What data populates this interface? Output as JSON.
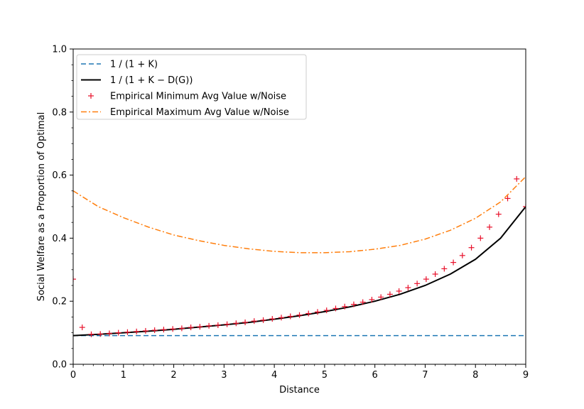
{
  "chart_data": {
    "type": "line",
    "xlabel": "Distance",
    "ylabel": "Social Welfare as a Proportion of Optimal",
    "xlim": [
      0,
      9
    ],
    "ylim": [
      0,
      1.0
    ],
    "x_ticks": [
      "0",
      "1",
      "2",
      "3",
      "4",
      "5",
      "6",
      "7",
      "8",
      "9"
    ],
    "y_ticks": [
      "0.0",
      "0.2",
      "0.4",
      "0.6",
      "0.8",
      "1.0"
    ],
    "grid": false,
    "legend_position": "top-left",
    "series": [
      {
        "name": "1 / (1 + K)",
        "style": "dashed",
        "color": "#1f77b4",
        "x": [
          0,
          9
        ],
        "y": [
          0.091,
          0.091
        ]
      },
      {
        "name": "1 / (1 + K − D(G))",
        "style": "solid",
        "color": "#000000",
        "x": [
          0,
          0.5,
          1,
          1.5,
          2,
          2.5,
          3,
          3.5,
          4,
          4.5,
          5,
          5.5,
          6,
          6.5,
          7,
          7.5,
          8,
          8.5,
          9
        ],
        "y": [
          0.091,
          0.095,
          0.1,
          0.105,
          0.111,
          0.118,
          0.125,
          0.133,
          0.143,
          0.154,
          0.167,
          0.182,
          0.2,
          0.222,
          0.25,
          0.286,
          0.333,
          0.4,
          0.5
        ]
      },
      {
        "name": "Empirical Minimum Avg Value w/Noise",
        "style": "marker-plus",
        "color": "#e8102a",
        "x": [
          0,
          0.18,
          0.36,
          0.54,
          0.72,
          0.9,
          1.08,
          1.26,
          1.44,
          1.62,
          1.8,
          1.98,
          2.16,
          2.34,
          2.52,
          2.7,
          2.88,
          3.06,
          3.24,
          3.42,
          3.6,
          3.78,
          3.96,
          4.14,
          4.32,
          4.5,
          4.68,
          4.86,
          5.04,
          5.22,
          5.4,
          5.58,
          5.76,
          5.94,
          6.12,
          6.3,
          6.48,
          6.66,
          6.84,
          7.02,
          7.2,
          7.38,
          7.56,
          7.74,
          7.92,
          8.1,
          8.28,
          8.46,
          8.64,
          8.82,
          9.0
        ],
        "y": [
          0.27,
          0.117,
          0.095,
          0.096,
          0.098,
          0.1,
          0.102,
          0.104,
          0.106,
          0.108,
          0.11,
          0.112,
          0.114,
          0.117,
          0.119,
          0.122,
          0.124,
          0.127,
          0.13,
          0.133,
          0.137,
          0.14,
          0.144,
          0.148,
          0.152,
          0.156,
          0.161,
          0.166,
          0.171,
          0.177,
          0.183,
          0.19,
          0.197,
          0.205,
          0.213,
          0.222,
          0.232,
          0.243,
          0.256,
          0.27,
          0.286,
          0.303,
          0.323,
          0.345,
          0.37,
          0.4,
          0.435,
          0.476,
          0.526,
          0.588,
          0.5
        ]
      },
      {
        "name": "Empirical Maximum Avg Value w/Noise",
        "style": "dashdot",
        "color": "#ff7f0e",
        "x": [
          0,
          0.5,
          1,
          1.5,
          2,
          2.5,
          3,
          3.5,
          4,
          4.5,
          5,
          5.5,
          6,
          6.5,
          7,
          7.5,
          8,
          8.5,
          9
        ],
        "y": [
          0.55,
          0.5,
          0.465,
          0.435,
          0.41,
          0.392,
          0.377,
          0.366,
          0.358,
          0.354,
          0.354,
          0.357,
          0.365,
          0.377,
          0.397,
          0.425,
          0.463,
          0.515,
          0.595
        ]
      }
    ]
  }
}
